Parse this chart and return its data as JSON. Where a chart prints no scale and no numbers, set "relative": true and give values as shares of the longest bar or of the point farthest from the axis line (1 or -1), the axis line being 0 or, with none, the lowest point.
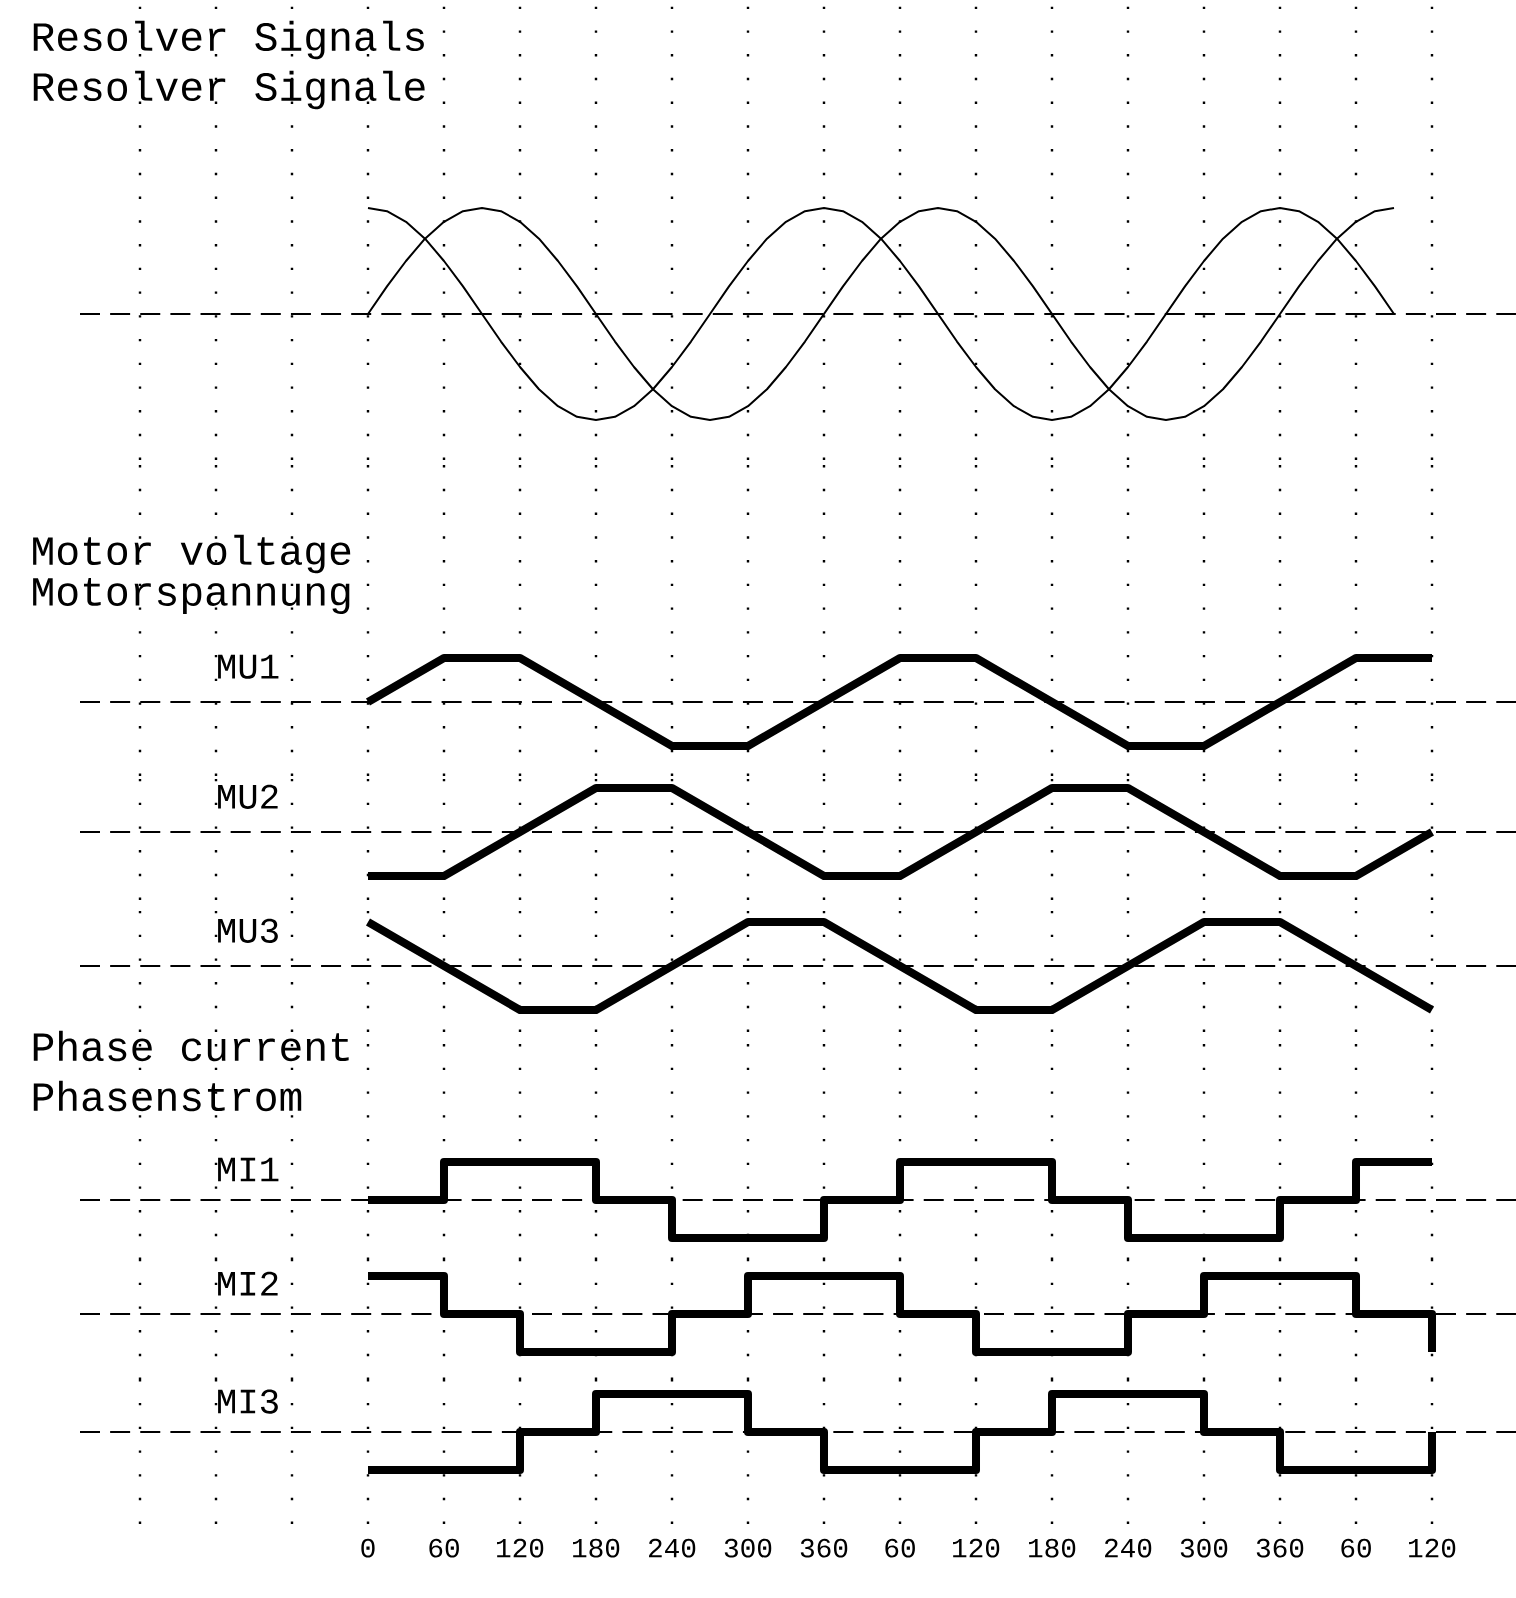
{
  "chart_data": [
    {
      "type": "line",
      "title": "Resolver Signals",
      "subtitle": "Resolver Signale",
      "relative": true,
      "grid": "x",
      "tick_labels": false,
      "categories": [
        null,
        null,
        null,
        null,
        null,
        null,
        null,
        null,
        null,
        null,
        null,
        null,
        null,
        null,
        null,
        null,
        null,
        null,
        null,
        null,
        null,
        null,
        null,
        null,
        null,
        null,
        null,
        null,
        null,
        null,
        null,
        null,
        null,
        null,
        null,
        null,
        null,
        null,
        null,
        null,
        null,
        null,
        null,
        null,
        null,
        null,
        null,
        null,
        null,
        null,
        null,
        null,
        null,
        null,
        null,
        null,
        null,
        null,
        null,
        null,
        null,
        null,
        null,
        null,
        null,
        null,
        null,
        null,
        null
      ],
      "ref_lines": [
        {
          "axis": "y",
          "value": 0,
          "line_style": "dashed"
        }
      ],
      "series": [
        {
          "color": "#000000",
          "values": [
            null,
            null,
            null,
            null,
            null,
            null,
            null,
            null,
            null,
            null,
            null,
            null,
            0,
            0.26,
            0.5,
            0.71,
            0.87,
            0.97,
            1,
            0.97,
            0.87,
            0.71,
            0.5,
            0.26,
            0,
            -0.26,
            -0.5,
            -0.71,
            -0.87,
            -0.97,
            -1,
            -0.97,
            -0.87,
            -0.71,
            -0.5,
            -0.26,
            0,
            0.26,
            0.5,
            0.71,
            0.87,
            0.97,
            1,
            0.97,
            0.87,
            0.71,
            0.5,
            0.26,
            0,
            -0.26,
            -0.5,
            -0.71,
            -0.87,
            -0.97,
            -1,
            -0.97,
            -0.87,
            -0.71,
            -0.5,
            -0.26,
            0,
            0.26,
            0.5,
            0.71,
            0.87,
            0.97,
            1,
            null,
            null
          ]
        },
        {
          "color": "#000000",
          "values": [
            null,
            null,
            null,
            null,
            null,
            null,
            null,
            null,
            null,
            null,
            null,
            null,
            1,
            0.97,
            0.87,
            0.71,
            0.5,
            0.26,
            0,
            -0.26,
            -0.5,
            -0.71,
            -0.87,
            -0.97,
            -1,
            -0.97,
            -0.87,
            -0.71,
            -0.5,
            -0.26,
            0,
            0.26,
            0.5,
            0.71,
            0.87,
            0.97,
            1,
            0.97,
            0.87,
            0.71,
            0.5,
            0.26,
            0,
            -0.26,
            -0.5,
            -0.71,
            -0.87,
            -0.97,
            -1,
            -0.97,
            -0.87,
            -0.71,
            -0.5,
            -0.26,
            0,
            0.26,
            0.5,
            0.71,
            0.87,
            0.97,
            1,
            0.97,
            0.87,
            0.71,
            0.5,
            0.26,
            0,
            null,
            null
          ]
        }
      ]
    },
    {
      "type": "line",
      "title": "Motor voltage",
      "subtitle": "Motorspannung",
      "relative": true,
      "grid": "x",
      "tick_labels": false,
      "categories": [
        null,
        null,
        null,
        null,
        null,
        null,
        null,
        null,
        null,
        null,
        null,
        null,
        null,
        null,
        null,
        null,
        null,
        null
      ],
      "ref_lines": [
        {
          "axis": "y",
          "value": 0,
          "line_style": "dashed"
        }
      ],
      "series": [
        {
          "name": "MU1",
          "color": "#000000",
          "values": [
            null,
            null,
            null,
            0,
            1,
            1,
            0,
            -1,
            -1,
            0,
            1,
            1,
            0,
            -1,
            -1,
            0,
            1,
            1
          ]
        }
      ]
    },
    {
      "type": "line",
      "relative": true,
      "grid": "x",
      "tick_labels": false,
      "categories": [
        null,
        null,
        null,
        null,
        null,
        null,
        null,
        null,
        null,
        null,
        null,
        null,
        null,
        null,
        null,
        null,
        null,
        null
      ],
      "ref_lines": [
        {
          "axis": "y",
          "value": 0,
          "line_style": "dashed"
        }
      ],
      "series": [
        {
          "name": "MU2",
          "color": "#000000",
          "values": [
            null,
            null,
            null,
            -1,
            -1,
            0,
            1,
            1,
            0,
            -1,
            -1,
            0,
            1,
            1,
            0,
            -1,
            -1,
            0
          ]
        }
      ]
    },
    {
      "type": "line",
      "relative": true,
      "grid": "x",
      "tick_labels": false,
      "categories": [
        null,
        null,
        null,
        null,
        null,
        null,
        null,
        null,
        null,
        null,
        null,
        null,
        null,
        null,
        null,
        null,
        null,
        null
      ],
      "ref_lines": [
        {
          "axis": "y",
          "value": 0,
          "line_style": "dashed"
        }
      ],
      "series": [
        {
          "name": "MU3",
          "color": "#000000",
          "values": [
            null,
            null,
            null,
            1,
            0,
            -1,
            -1,
            0,
            1,
            1,
            0,
            -1,
            -1,
            0,
            1,
            1,
            0,
            -1
          ]
        }
      ]
    },
    {
      "type": "step",
      "title": "Phase current",
      "subtitle": "Phasenstrom",
      "relative": true,
      "grid": "x",
      "tick_labels": false,
      "categories": [
        null,
        null,
        null,
        null,
        null,
        null,
        null,
        null,
        null,
        null,
        null,
        null,
        null,
        null,
        null,
        null,
        null,
        null
      ],
      "ref_lines": [
        {
          "axis": "y",
          "value": 0,
          "line_style": "dashed"
        }
      ],
      "series": [
        {
          "name": "MI1",
          "color": "#000000",
          "values": [
            null,
            null,
            null,
            0,
            1,
            1,
            0,
            -1,
            -1,
            0,
            1,
            1,
            0,
            -1,
            -1,
            0,
            1,
            1
          ]
        }
      ]
    },
    {
      "type": "step",
      "relative": true,
      "grid": "x",
      "tick_labels": false,
      "categories": [
        null,
        null,
        null,
        null,
        null,
        null,
        null,
        null,
        null,
        null,
        null,
        null,
        null,
        null,
        null,
        null,
        null,
        null
      ],
      "ref_lines": [
        {
          "axis": "y",
          "value": 0,
          "line_style": "dashed"
        }
      ],
      "series": [
        {
          "name": "MI2",
          "color": "#000000",
          "values": [
            null,
            null,
            null,
            1,
            0,
            -1,
            -1,
            0,
            1,
            1,
            0,
            -1,
            -1,
            0,
            1,
            1,
            0,
            -1
          ]
        }
      ]
    },
    {
      "type": "step",
      "relative": true,
      "grid": "x",
      "tick_labels": "x",
      "categories": [
        null,
        null,
        null,
        "0",
        "60",
        "120",
        "180",
        "240",
        "300",
        "360",
        "60",
        "120",
        "180",
        "240",
        "300",
        "360",
        "60",
        "120"
      ],
      "ref_lines": [
        {
          "axis": "y",
          "value": 0,
          "line_style": "dashed"
        }
      ],
      "series": [
        {
          "name": "MI3",
          "color": "#000000",
          "values": [
            null,
            null,
            null,
            -1,
            -1,
            0,
            1,
            1,
            0,
            -1,
            -1,
            0,
            1,
            1,
            0,
            -1,
            -1,
            0
          ]
        }
      ]
    }
  ]
}
